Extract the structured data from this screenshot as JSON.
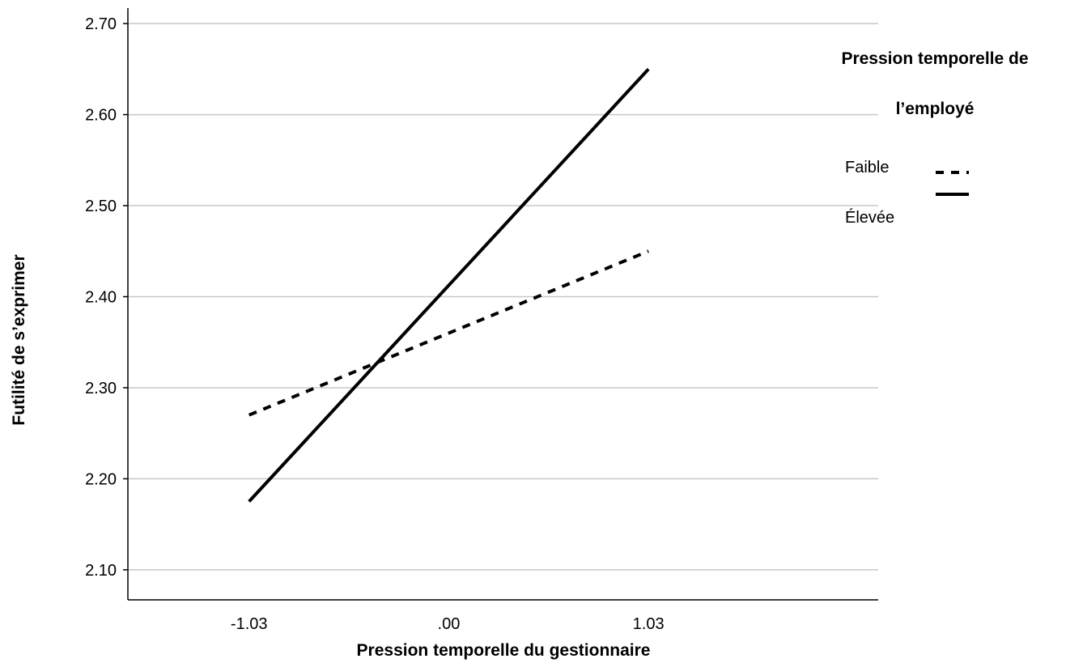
{
  "chart_data": {
    "type": "line",
    "xlabel": "Pression temporelle du gestionnaire",
    "ylabel": "Futilité de s’exprimer",
    "x": [
      -1.03,
      1.03
    ],
    "x_tick_labels": [
      "-1.03",
      ".00",
      "1.03"
    ],
    "x_ticks": [
      -1.03,
      0,
      1.03
    ],
    "xlim": [
      -1.655,
      2.215
    ],
    "y_ticks": [
      2.1,
      2.2,
      2.3,
      2.4,
      2.5,
      2.6,
      2.7
    ],
    "y_tick_labels": [
      "2.10",
      "2.20",
      "2.30",
      "2.40",
      "2.50",
      "2.60",
      "2.70"
    ],
    "ylim": [
      2.067,
      2.717
    ],
    "grid": true,
    "legend": {
      "title_lines": [
        "Pression temporelle de",
        "l’employé"
      ],
      "placement": "top-right"
    },
    "series": [
      {
        "name": "Faible",
        "values": [
          2.27,
          2.45
        ],
        "style": "dashed",
        "color": "#000000"
      },
      {
        "name": "Élevée",
        "values": [
          2.175,
          2.65
        ],
        "style": "solid",
        "color": "#000000"
      }
    ]
  }
}
